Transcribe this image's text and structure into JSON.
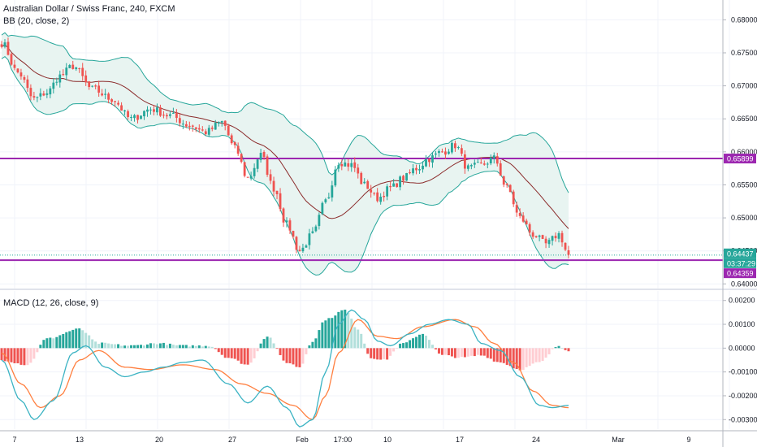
{
  "header": {
    "symbol": "Australian Dollar / Swiss Franc, 240, FXCM",
    "bb_label": "BB (20, close, 2)",
    "macd_label": "MACD (12, 26, close, 9)"
  },
  "price_axis": {
    "ticks": [
      "0.68000",
      "0.67500",
      "0.67000",
      "0.66500",
      "0.66000",
      "0.65500",
      "0.65000",
      "0.64500",
      "0.64000"
    ],
    "tick_values": [
      0.68,
      0.675,
      0.67,
      0.665,
      0.66,
      0.655,
      0.65,
      0.645,
      0.64
    ]
  },
  "macd_axis": {
    "ticks": [
      "0.00200",
      "0.00100",
      "0.00000",
      "-0.00100",
      "-0.00200",
      "-0.00300"
    ],
    "tick_values": [
      0.002,
      0.001,
      0.0,
      -0.001,
      -0.002,
      -0.003
    ]
  },
  "x_axis": {
    "labels": [
      "7",
      "13",
      "20",
      "27",
      "Feb",
      "17:00",
      "10",
      "17",
      "24",
      "Mar",
      "9"
    ]
  },
  "tags": {
    "resistance": "0.65899",
    "last_price": "0.64437",
    "countdown": "03:37:29",
    "support": "0.64359"
  },
  "colors": {
    "bull": "#26a69a",
    "bear": "#ef5350",
    "bull_light": "#b2dfdb",
    "bear_light": "#ffcdd2",
    "bb_fill": "#e8f4f1",
    "bb_band": "#26a69a",
    "bb_mid": "#8b2b2b",
    "hline": "#9c27b0",
    "macd_line": "#3bb3c3",
    "signal_line": "#ff7f3f",
    "last_price_tag": "#26a69a"
  },
  "chart_data": {
    "type": "candlestick",
    "title": "Australian Dollar / Swiss Franc, 240, FXCM",
    "indicators": [
      "BB (20, close, 2)",
      "MACD (12, 26, close, 9)"
    ],
    "x_labels": [
      "7",
      "13",
      "20",
      "27",
      "Feb",
      "17:00",
      "10",
      "17",
      "24",
      "Mar",
      "9"
    ],
    "price_range": [
      0.6393,
      0.683
    ],
    "macd_range": [
      -0.0034,
      0.0024
    ],
    "horizontal_lines": [
      0.65899,
      0.64359
    ],
    "last_price": 0.64437,
    "close_anchors": [
      {
        "i": 0,
        "v": 0.6765
      },
      {
        "i": 5,
        "v": 0.672
      },
      {
        "i": 10,
        "v": 0.668
      },
      {
        "i": 14,
        "v": 0.669
      },
      {
        "i": 18,
        "v": 0.6715
      },
      {
        "i": 22,
        "v": 0.673
      },
      {
        "i": 28,
        "v": 0.6695
      },
      {
        "i": 34,
        "v": 0.668
      },
      {
        "i": 40,
        "v": 0.665
      },
      {
        "i": 46,
        "v": 0.6665
      },
      {
        "i": 52,
        "v": 0.6655
      },
      {
        "i": 58,
        "v": 0.664
      },
      {
        "i": 63,
        "v": 0.663
      },
      {
        "i": 68,
        "v": 0.6645
      },
      {
        "i": 72,
        "v": 0.6605
      },
      {
        "i": 76,
        "v": 0.656
      },
      {
        "i": 80,
        "v": 0.6595
      },
      {
        "i": 84,
        "v": 0.6545
      },
      {
        "i": 88,
        "v": 0.649
      },
      {
        "i": 92,
        "v": 0.645
      },
      {
        "i": 96,
        "v": 0.6475
      },
      {
        "i": 100,
        "v": 0.6525
      },
      {
        "i": 104,
        "v": 0.6585
      },
      {
        "i": 108,
        "v": 0.658
      },
      {
        "i": 112,
        "v": 0.655
      },
      {
        "i": 116,
        "v": 0.653
      },
      {
        "i": 120,
        "v": 0.6545
      },
      {
        "i": 124,
        "v": 0.656
      },
      {
        "i": 128,
        "v": 0.6575
      },
      {
        "i": 132,
        "v": 0.659
      },
      {
        "i": 136,
        "v": 0.66
      },
      {
        "i": 140,
        "v": 0.661
      },
      {
        "i": 144,
        "v": 0.6575
      },
      {
        "i": 148,
        "v": 0.658
      },
      {
        "i": 152,
        "v": 0.659
      },
      {
        "i": 156,
        "v": 0.6545
      },
      {
        "i": 160,
        "v": 0.65
      },
      {
        "i": 164,
        "v": 0.6475
      },
      {
        "i": 168,
        "v": 0.646
      },
      {
        "i": 172,
        "v": 0.6475
      },
      {
        "i": 175,
        "v": 0.6444
      }
    ],
    "macd_hist_anchors": [
      {
        "i": 0,
        "v": -0.0005
      },
      {
        "i": 8,
        "v": -0.0007
      },
      {
        "i": 14,
        "v": 0.0004
      },
      {
        "i": 24,
        "v": 0.0008
      },
      {
        "i": 30,
        "v": 0.0002
      },
      {
        "i": 40,
        "v": 0.0001
      },
      {
        "i": 48,
        "v": 0.0002
      },
      {
        "i": 56,
        "v": 0.0001
      },
      {
        "i": 64,
        "v": 0.0001
      },
      {
        "i": 70,
        "v": -0.0004
      },
      {
        "i": 76,
        "v": -0.0007
      },
      {
        "i": 82,
        "v": 0.0005
      },
      {
        "i": 88,
        "v": -0.0006
      },
      {
        "i": 92,
        "v": -0.0008
      },
      {
        "i": 96,
        "v": 0.0003
      },
      {
        "i": 100,
        "v": 0.0012
      },
      {
        "i": 106,
        "v": 0.0016
      },
      {
        "i": 110,
        "v": 0.0008
      },
      {
        "i": 114,
        "v": -0.0004
      },
      {
        "i": 118,
        "v": -0.0005
      },
      {
        "i": 124,
        "v": 0.0002
      },
      {
        "i": 130,
        "v": 0.0006
      },
      {
        "i": 136,
        "v": -0.0003
      },
      {
        "i": 142,
        "v": -0.0004
      },
      {
        "i": 148,
        "v": -0.0003
      },
      {
        "i": 154,
        "v": -0.0006
      },
      {
        "i": 160,
        "v": -0.0009
      },
      {
        "i": 166,
        "v": -0.0006
      },
      {
        "i": 172,
        "v": 0.0001
      },
      {
        "i": 175,
        "v": -0.0001
      }
    ],
    "macd_line_anchors": [
      {
        "i": 0,
        "v": -0.0005
      },
      {
        "i": 6,
        "v": -0.0022
      },
      {
        "i": 10,
        "v": -0.003
      },
      {
        "i": 16,
        "v": -0.0022
      },
      {
        "i": 22,
        "v": -0.0002
      },
      {
        "i": 26,
        "v": 0.0001
      },
      {
        "i": 32,
        "v": -0.0008
      },
      {
        "i": 38,
        "v": -0.0012
      },
      {
        "i": 44,
        "v": -0.001
      },
      {
        "i": 50,
        "v": -0.0008
      },
      {
        "i": 56,
        "v": -0.0006
      },
      {
        "i": 62,
        "v": -0.0005
      },
      {
        "i": 70,
        "v": -0.0015
      },
      {
        "i": 76,
        "v": -0.0023
      },
      {
        "i": 82,
        "v": -0.0016
      },
      {
        "i": 88,
        "v": -0.0025
      },
      {
        "i": 92,
        "v": -0.0033
      },
      {
        "i": 96,
        "v": -0.003
      },
      {
        "i": 100,
        "v": -0.001
      },
      {
        "i": 104,
        "v": 0.001
      },
      {
        "i": 108,
        "v": 0.0016
      },
      {
        "i": 112,
        "v": 0.0012
      },
      {
        "i": 116,
        "v": 0.0003
      },
      {
        "i": 120,
        "v": 0.0001
      },
      {
        "i": 126,
        "v": 0.0006
      },
      {
        "i": 132,
        "v": 0.001
      },
      {
        "i": 138,
        "v": 0.0012
      },
      {
        "i": 144,
        "v": 0.001
      },
      {
        "i": 148,
        "v": 0.0002
      },
      {
        "i": 154,
        "v": -0.0001
      },
      {
        "i": 160,
        "v": -0.0012
      },
      {
        "i": 166,
        "v": -0.0024
      },
      {
        "i": 170,
        "v": -0.0025
      },
      {
        "i": 175,
        "v": -0.0024
      }
    ],
    "signal_line_anchors": [
      {
        "i": 0,
        "v": -0.0002
      },
      {
        "i": 6,
        "v": -0.0015
      },
      {
        "i": 12,
        "v": -0.0025
      },
      {
        "i": 18,
        "v": -0.002
      },
      {
        "i": 24,
        "v": -0.0005
      },
      {
        "i": 30,
        "v": -0.0001
      },
      {
        "i": 38,
        "v": -0.0008
      },
      {
        "i": 46,
        "v": -0.0009
      },
      {
        "i": 56,
        "v": -0.0007
      },
      {
        "i": 66,
        "v": -0.0009
      },
      {
        "i": 74,
        "v": -0.0015
      },
      {
        "i": 82,
        "v": -0.0019
      },
      {
        "i": 90,
        "v": -0.0024
      },
      {
        "i": 96,
        "v": -0.003
      },
      {
        "i": 100,
        "v": -0.002
      },
      {
        "i": 104,
        "v": -0.0002
      },
      {
        "i": 110,
        "v": 0.0012
      },
      {
        "i": 116,
        "v": 0.0005
      },
      {
        "i": 122,
        "v": 0.0004
      },
      {
        "i": 130,
        "v": 0.0009
      },
      {
        "i": 140,
        "v": 0.0012
      },
      {
        "i": 146,
        "v": 0.0009
      },
      {
        "i": 152,
        "v": 0.0002
      },
      {
        "i": 158,
        "v": -0.0006
      },
      {
        "i": 164,
        "v": -0.0018
      },
      {
        "i": 170,
        "v": -0.0024
      },
      {
        "i": 175,
        "v": -0.0025
      }
    ],
    "bars": 176
  }
}
